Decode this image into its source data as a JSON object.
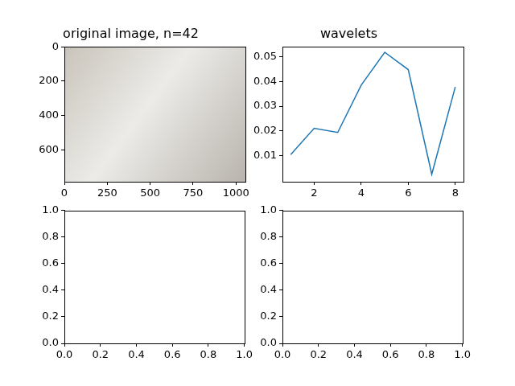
{
  "chart_data": [
    {
      "type": "image",
      "title": "original image, n=42",
      "xlim": [
        0,
        1055
      ],
      "ylim": [
        787,
        0
      ],
      "xticks": [
        0,
        250,
        500,
        750,
        1000
      ],
      "yticks": [
        0,
        200,
        400,
        600
      ],
      "grid": false
    },
    {
      "type": "line",
      "title": "wavelets",
      "x": [
        1,
        2,
        3,
        4,
        5,
        6,
        7,
        8
      ],
      "values": [
        0.0105,
        0.0211,
        0.0194,
        0.0385,
        0.0518,
        0.0448,
        0.0025,
        0.0378
      ],
      "color": "#1f77b4",
      "xlim": [
        0.65,
        8.35
      ],
      "ylim": [
        -0.0005,
        0.054
      ],
      "xticks": [
        2,
        4,
        6,
        8
      ],
      "yticks": [
        0.01,
        0.02,
        0.03,
        0.04,
        0.05
      ],
      "grid": false
    },
    {
      "type": "empty",
      "xlim": [
        0,
        1
      ],
      "ylim": [
        0,
        1
      ],
      "xticks": [
        {
          "value": 0,
          "label": "0.0"
        },
        {
          "value": 0.2,
          "label": "0.2"
        },
        {
          "value": 0.4,
          "label": "0.4"
        },
        {
          "value": 0.6,
          "label": "0.6"
        },
        {
          "value": 0.8,
          "label": "0.8"
        },
        {
          "value": 1,
          "label": "1.0"
        }
      ],
      "yticks": [
        {
          "value": 0,
          "label": "0.0"
        },
        {
          "value": 0.2,
          "label": "0.2"
        },
        {
          "value": 0.4,
          "label": "0.4"
        },
        {
          "value": 0.6,
          "label": "0.6"
        },
        {
          "value": 0.8,
          "label": "0.8"
        },
        {
          "value": 1,
          "label": "1.0"
        }
      ],
      "grid": false
    },
    {
      "type": "empty",
      "xlim": [
        0,
        1
      ],
      "ylim": [
        0,
        1
      ],
      "xticks": [
        {
          "value": 0,
          "label": "0.0"
        },
        {
          "value": 0.2,
          "label": "0.2"
        },
        {
          "value": 0.4,
          "label": "0.4"
        },
        {
          "value": 0.6,
          "label": "0.6"
        },
        {
          "value": 0.8,
          "label": "0.8"
        },
        {
          "value": 1,
          "label": "1.0"
        }
      ],
      "yticks": [
        {
          "value": 0,
          "label": "0.0"
        },
        {
          "value": 0.2,
          "label": "0.2"
        },
        {
          "value": 0.4,
          "label": "0.4"
        },
        {
          "value": 0.6,
          "label": "0.6"
        },
        {
          "value": 0.8,
          "label": "0.8"
        },
        {
          "value": 1,
          "label": "1.0"
        }
      ],
      "grid": false
    }
  ]
}
